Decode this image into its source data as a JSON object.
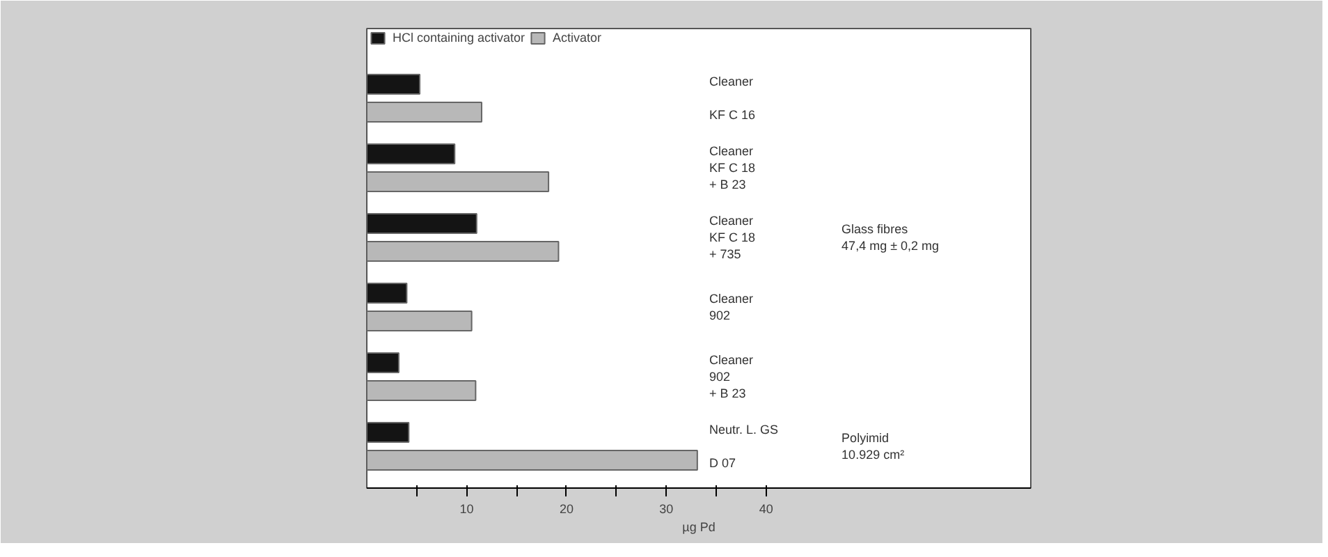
{
  "chart_data": {
    "type": "bar",
    "orientation": "horizontal",
    "categories": [
      "Cleaner\n\nKF C 16",
      "Cleaner\nKF C 18\n+ B 23",
      "Cleaner\nKF C 18\n+ 735",
      "Cleaner\n902",
      "Cleaner\n902\n+ B 23",
      "Neutr. L. GS\n\nD 07"
    ],
    "series": [
      {
        "name": "HCl containing activator",
        "color": "#141414",
        "values": [
          5.3,
          8.8,
          11,
          4,
          3.2,
          4.2
        ]
      },
      {
        "name": "Activator",
        "color": "#b8b8b8",
        "values": [
          11.5,
          18.2,
          19.2,
          10.5,
          10.9,
          33.1
        ]
      }
    ],
    "xlabel": "µg Pd",
    "xlim": [
      0,
      66.5
    ],
    "xticks": [
      {
        "value": 5,
        "label": null
      },
      10,
      {
        "value": 15,
        "label": null
      },
      20,
      {
        "value": 25,
        "label": null
      },
      30,
      {
        "value": 35,
        "label": null
      },
      40
    ],
    "annotations": [
      "Glass fibres\n47,4 mg ± 0,2 mg",
      "Polyimid\n10.929 cm²"
    ],
    "grid": false,
    "legend": "top left"
  }
}
